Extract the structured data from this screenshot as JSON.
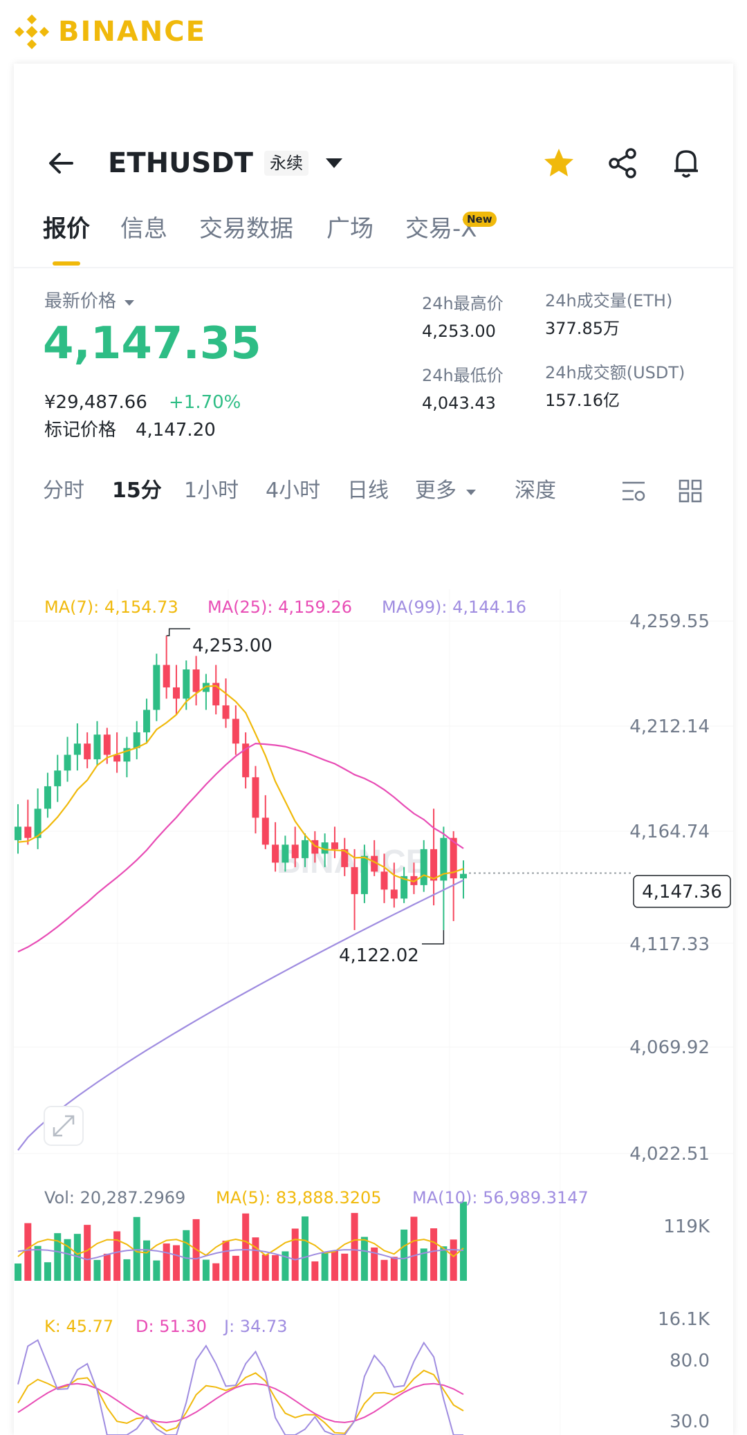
{
  "brand": {
    "name": "BINANCE",
    "color": "#F0B90B"
  },
  "header": {
    "symbol": "ETHUSDT",
    "contract_badge": "永续",
    "icons": [
      "back-arrow-icon",
      "chevron-down-icon",
      "star-icon",
      "share-icon",
      "bell-icon"
    ]
  },
  "tabs": {
    "items": [
      "报价",
      "信息",
      "交易数据",
      "广场",
      "交易-X"
    ],
    "active": "报价",
    "new_badge": "New"
  },
  "price": {
    "last_price_label": "最新价格",
    "last_price": "4,147.35",
    "cny_price": "¥29,487.66",
    "change_pct": "+1.70%",
    "mark_price_label": "标记价格",
    "mark_price": "4,147.20",
    "up_color": "#2ebd85"
  },
  "stats": {
    "high_label": "24h最高价",
    "high_value": "4,253.00",
    "low_label": "24h最低价",
    "low_value": "4,043.43",
    "vol_eth_label": "24h成交量(ETH)",
    "vol_eth_value": "377.85万",
    "vol_usdt_label": "24h成交额(USDT)",
    "vol_usdt_value": "157.16亿"
  },
  "intervals": {
    "items": [
      "分时",
      "15分",
      "1小时",
      "4小时",
      "日线",
      "更多",
      "深度"
    ],
    "active": "15分"
  },
  "chart": {
    "ma7_label": "MA(7): 4,154.73",
    "ma25_label": "MA(25): 4,159.26",
    "ma99_label": "MA(99): 4,144.16",
    "high_marker": "4,253.00",
    "low_marker": "4,122.02",
    "current_price_tag": "4,147.36",
    "watermark": "BINANCE",
    "y_ticks": [
      "4,259.55",
      "4,212.14",
      "4,164.74",
      "4,117.33",
      "4,069.92",
      "4,022.51"
    ],
    "vol_label": "Vol: 20,287.2969",
    "vol_ma5_label": "MA(5): 83,888.3205",
    "vol_ma10_label": "MA(10): 56,989.3147",
    "vol_ticks": [
      "119K",
      "16.1K"
    ],
    "k_label": "K: 45.77",
    "d_label": "D: 51.30",
    "j_label": "J: 34.73",
    "kdj_ticks": [
      "80.0",
      "30.0"
    ],
    "colors": {
      "up": "#2ebd85",
      "down": "#f6465d",
      "ma7": "#F0B90B",
      "ma25": "#e84cb5",
      "ma99": "#9f8ce0"
    }
  },
  "chart_data": {
    "type": "candlestick",
    "interval": "15分",
    "y_range": [
      4010,
      4270
    ],
    "candles": [
      {
        "o": 4162,
        "h": 4178,
        "l": 4156,
        "c": 4168
      },
      {
        "o": 4168,
        "h": 4180,
        "l": 4160,
        "c": 4163
      },
      {
        "o": 4163,
        "h": 4185,
        "l": 4158,
        "c": 4176
      },
      {
        "o": 4176,
        "h": 4192,
        "l": 4172,
        "c": 4186
      },
      {
        "o": 4186,
        "h": 4200,
        "l": 4179,
        "c": 4193
      },
      {
        "o": 4193,
        "h": 4208,
        "l": 4188,
        "c": 4200
      },
      {
        "o": 4200,
        "h": 4214,
        "l": 4193,
        "c": 4205
      },
      {
        "o": 4205,
        "h": 4210,
        "l": 4194,
        "c": 4198
      },
      {
        "o": 4198,
        "h": 4215,
        "l": 4195,
        "c": 4209
      },
      {
        "o": 4209,
        "h": 4212,
        "l": 4196,
        "c": 4200
      },
      {
        "o": 4200,
        "h": 4210,
        "l": 4192,
        "c": 4197
      },
      {
        "o": 4197,
        "h": 4208,
        "l": 4190,
        "c": 4203
      },
      {
        "o": 4203,
        "h": 4215,
        "l": 4198,
        "c": 4210
      },
      {
        "o": 4210,
        "h": 4225,
        "l": 4205,
        "c": 4220
      },
      {
        "o": 4220,
        "h": 4245,
        "l": 4215,
        "c": 4240
      },
      {
        "o": 4240,
        "h": 4253,
        "l": 4225,
        "c": 4230
      },
      {
        "o": 4230,
        "h": 4240,
        "l": 4218,
        "c": 4225
      },
      {
        "o": 4225,
        "h": 4242,
        "l": 4220,
        "c": 4238
      },
      {
        "o": 4238,
        "h": 4244,
        "l": 4222,
        "c": 4228
      },
      {
        "o": 4228,
        "h": 4236,
        "l": 4220,
        "c": 4232
      },
      {
        "o": 4232,
        "h": 4240,
        "l": 4218,
        "c": 4222
      },
      {
        "o": 4222,
        "h": 4234,
        "l": 4212,
        "c": 4216
      },
      {
        "o": 4216,
        "h": 4222,
        "l": 4200,
        "c": 4205
      },
      {
        "o": 4205,
        "h": 4210,
        "l": 4185,
        "c": 4190
      },
      {
        "o": 4190,
        "h": 4195,
        "l": 4165,
        "c": 4172
      },
      {
        "o": 4172,
        "h": 4182,
        "l": 4158,
        "c": 4160
      },
      {
        "o": 4160,
        "h": 4170,
        "l": 4148,
        "c": 4152
      },
      {
        "o": 4152,
        "h": 4164,
        "l": 4148,
        "c": 4160
      },
      {
        "o": 4160,
        "h": 4168,
        "l": 4150,
        "c": 4154
      },
      {
        "o": 4154,
        "h": 4165,
        "l": 4150,
        "c": 4162
      },
      {
        "o": 4162,
        "h": 4166,
        "l": 4152,
        "c": 4156
      },
      {
        "o": 4156,
        "h": 4165,
        "l": 4150,
        "c": 4161
      },
      {
        "o": 4161,
        "h": 4168,
        "l": 4154,
        "c": 4158
      },
      {
        "o": 4158,
        "h": 4163,
        "l": 4146,
        "c": 4150
      },
      {
        "o": 4150,
        "h": 4158,
        "l": 4122,
        "c": 4138
      },
      {
        "o": 4138,
        "h": 4160,
        "l": 4134,
        "c": 4155
      },
      {
        "o": 4155,
        "h": 4162,
        "l": 4146,
        "c": 4148
      },
      {
        "o": 4148,
        "h": 4156,
        "l": 4134,
        "c": 4140
      },
      {
        "o": 4140,
        "h": 4152,
        "l": 4132,
        "c": 4136
      },
      {
        "o": 4136,
        "h": 4150,
        "l": 4134,
        "c": 4146
      },
      {
        "o": 4146,
        "h": 4152,
        "l": 4138,
        "c": 4142
      },
      {
        "o": 4142,
        "h": 4162,
        "l": 4139,
        "c": 4158
      },
      {
        "o": 4158,
        "h": 4176,
        "l": 4133,
        "c": 4144
      },
      {
        "o": 4144,
        "h": 4168,
        "l": 4122,
        "c": 4163
      },
      {
        "o": 4163,
        "h": 4166,
        "l": 4126,
        "c": 4145
      },
      {
        "o": 4145,
        "h": 4153,
        "l": 4136,
        "c": 4147
      }
    ]
  }
}
